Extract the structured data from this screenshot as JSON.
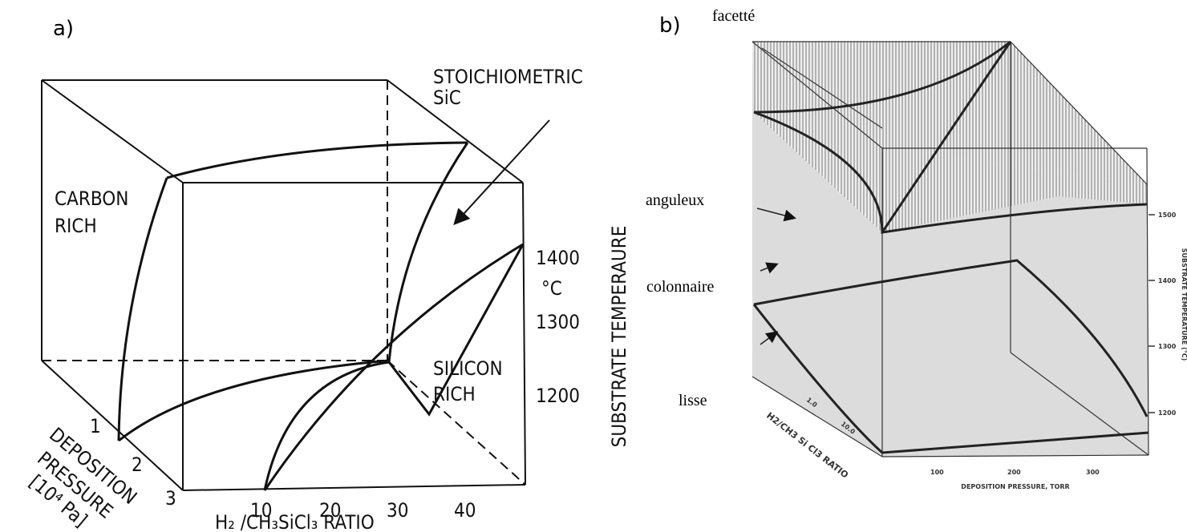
{
  "panel_a": {
    "label": "a)",
    "annotations": [
      "STOICHIOMETRIC",
      "SiC",
      "CARBON",
      "RICH",
      "SILICON",
      "RICH"
    ],
    "temperature_axis": {
      "title": "SUBSTRATE TEMPERAURE",
      "unit": "°C",
      "ticks": [
        "1400",
        "1300",
        "1200"
      ]
    },
    "ratio_axis": {
      "title": "H₂ /CH₃SiCl₃  RATIO",
      "ticks": [
        "10",
        "20",
        "30",
        "40"
      ]
    },
    "pressure_axis": {
      "title": [
        "DEPOSITION",
        "PRESSURE",
        "[10⁴ Pa]"
      ],
      "ticks": [
        "1",
        "2",
        "3"
      ]
    }
  },
  "panel_b": {
    "label": "b)",
    "regions": [
      "facetté",
      "anguleux",
      "colonnaire",
      "lisse"
    ],
    "temperature_axis": {
      "title": "SUBSTRATE TEMPERATURE (°C)",
      "ticks": [
        "1500",
        "1400",
        "1300",
        "1200"
      ]
    },
    "ratio_axis": {
      "title": "H2/CH3 Si Cl3 RATIO",
      "ticks": [
        "1.0",
        "10.0"
      ]
    },
    "pressure_axis": {
      "title": "DEPOSITION PRESSURE, TORR",
      "ticks": [
        "100",
        "200",
        "300"
      ]
    }
  }
}
